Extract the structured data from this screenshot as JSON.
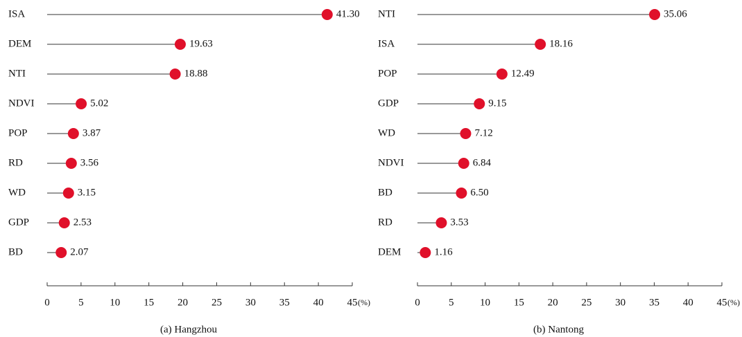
{
  "chart_data": [
    {
      "type": "lollipop",
      "title": "(a) Hangzhou",
      "xlabel": "(%)",
      "categories": [
        "ISA",
        "DEM",
        "NTI",
        "NDVI",
        "POP",
        "RD",
        "WD",
        "GDP",
        "BD"
      ],
      "values": [
        41.3,
        19.63,
        18.88,
        5.02,
        3.87,
        3.56,
        3.15,
        2.53,
        2.07
      ],
      "value_labels": [
        "41.30",
        "19.63",
        "18.88",
        "5.02",
        "3.87",
        "3.56",
        "3.15",
        "2.53",
        "2.07"
      ],
      "color": "#e0102a",
      "xlim": [
        0,
        45
      ],
      "xticks": [
        0,
        5,
        10,
        15,
        20,
        25,
        30,
        35,
        40,
        45
      ]
    },
    {
      "type": "lollipop",
      "title": "(b) Nantong",
      "xlabel": "(%)",
      "categories": [
        "NTI",
        "ISA",
        "POP",
        "GDP",
        "WD",
        "NDVI",
        "BD",
        "RD",
        "DEM"
      ],
      "values": [
        35.06,
        18.16,
        12.49,
        9.15,
        7.12,
        6.84,
        6.5,
        3.53,
        1.16
      ],
      "value_labels": [
        "35.06",
        "18.16",
        "12.49",
        "9.15",
        "7.12",
        "6.84",
        "6.50",
        "3.53",
        "1.16"
      ],
      "color": "#e0102a",
      "xlim": [
        0,
        45
      ],
      "xticks": [
        0,
        5,
        10,
        15,
        20,
        25,
        30,
        35,
        40,
        45
      ]
    }
  ]
}
